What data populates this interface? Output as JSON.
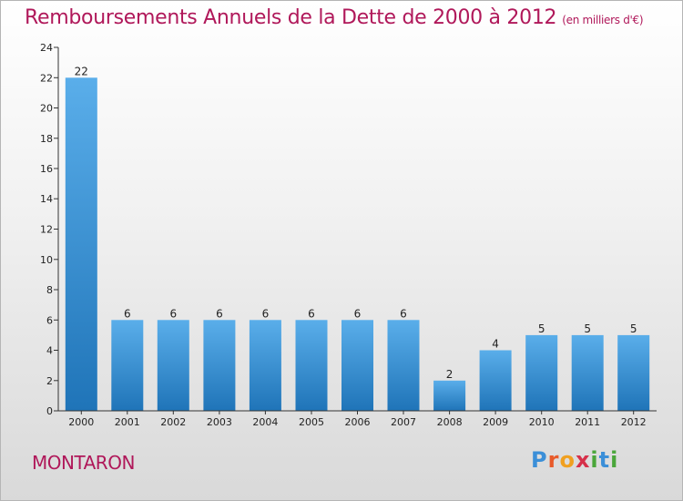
{
  "title": "Remboursements Annuels de la Dette de 2000 à 2012",
  "unit_note": "(en milliers d'€)",
  "place": "MONTARON",
  "logo_text": "Proxiti",
  "colors": {
    "title": "#b0185a",
    "bar_light": "#5aaeea",
    "bar_dark": "#1f74b8",
    "axis": "#333333"
  },
  "chart_data": {
    "type": "bar",
    "categories": [
      "2000",
      "2001",
      "2002",
      "2003",
      "2004",
      "2005",
      "2006",
      "2007",
      "2008",
      "2009",
      "2010",
      "2011",
      "2012"
    ],
    "values": [
      22,
      6,
      6,
      6,
      6,
      6,
      6,
      6,
      2,
      4,
      5,
      5,
      5
    ],
    "ylim": [
      0,
      24
    ],
    "yticks": [
      0,
      2,
      4,
      6,
      8,
      10,
      12,
      14,
      16,
      18,
      20,
      22,
      24
    ],
    "data_labels": true,
    "grid": false,
    "xlabel": "",
    "ylabel": ""
  }
}
